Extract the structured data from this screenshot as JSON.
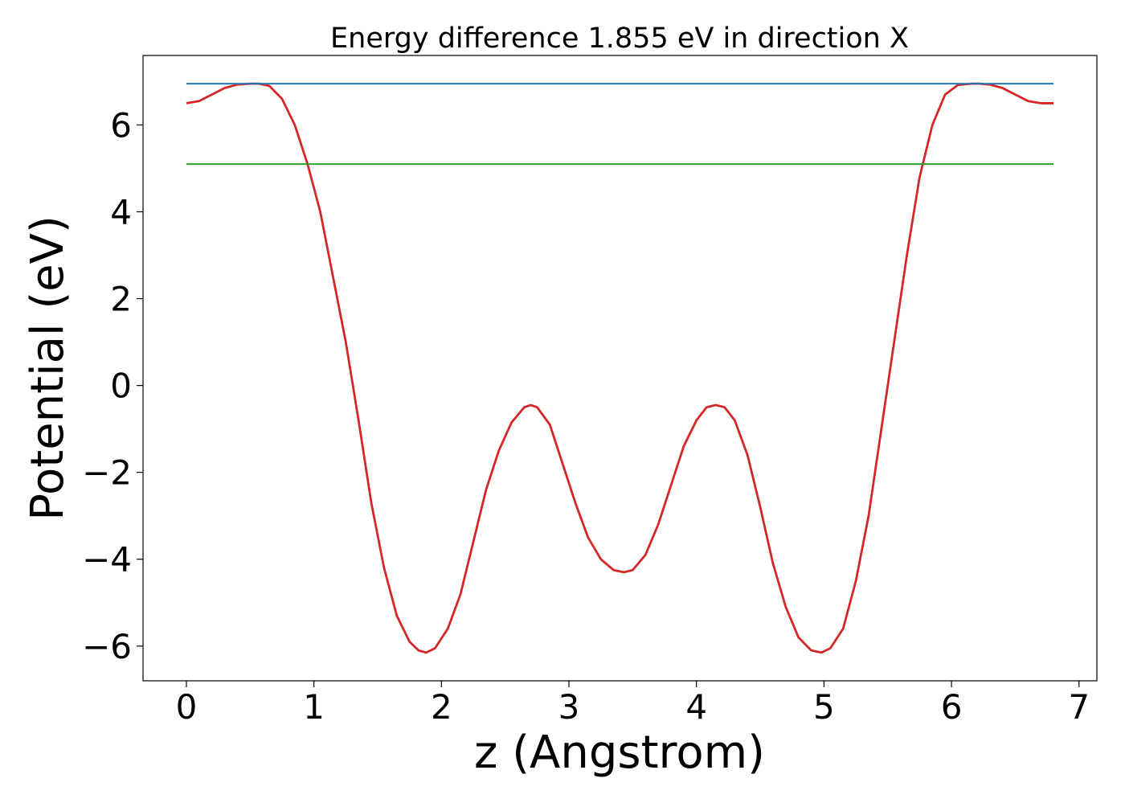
{
  "chart_data": {
    "type": "line",
    "title": "Energy difference 1.855 eV in direction X",
    "xlabel": "z (Angstrom)",
    "ylabel": "Potential (eV)",
    "xlim": [
      -0.34,
      7.14
    ],
    "ylim": [
      -6.8,
      7.6
    ],
    "xticks": [
      0,
      1,
      2,
      3,
      4,
      5,
      6,
      7
    ],
    "xtick_labels": [
      "0",
      "1",
      "2",
      "3",
      "4",
      "5",
      "6",
      "7"
    ],
    "yticks": [
      -6,
      -4,
      -2,
      0,
      2,
      4,
      6
    ],
    "ytick_labels": [
      "−6",
      "−4",
      "−2",
      "0",
      "2",
      "4",
      "6"
    ],
    "grid": false,
    "series": [
      {
        "color": "#d62728",
        "x": [
          0.0,
          0.1,
          0.2,
          0.3,
          0.4,
          0.5,
          0.57,
          0.65,
          0.75,
          0.85,
          0.95,
          1.05,
          1.15,
          1.25,
          1.35,
          1.45,
          1.55,
          1.65,
          1.75,
          1.82,
          1.88,
          1.95,
          2.05,
          2.15,
          2.25,
          2.35,
          2.45,
          2.55,
          2.65,
          2.7,
          2.75,
          2.85,
          2.95,
          3.05,
          3.15,
          3.25,
          3.35,
          3.43,
          3.5,
          3.6,
          3.7,
          3.8,
          3.9,
          4.0,
          4.08,
          4.15,
          4.22,
          4.3,
          4.4,
          4.5,
          4.6,
          4.7,
          4.8,
          4.9,
          4.98,
          5.05,
          5.15,
          5.25,
          5.35,
          5.45,
          5.55,
          5.65,
          5.75,
          5.85,
          5.95,
          6.05,
          6.15,
          6.22,
          6.3,
          6.4,
          6.5,
          6.6,
          6.7,
          6.8
        ],
        "y": [
          6.5,
          6.55,
          6.7,
          6.85,
          6.93,
          6.95,
          6.95,
          6.9,
          6.6,
          6.0,
          5.1,
          4.0,
          2.5,
          1.0,
          -0.8,
          -2.7,
          -4.2,
          -5.3,
          -5.9,
          -6.1,
          -6.15,
          -6.05,
          -5.6,
          -4.8,
          -3.6,
          -2.4,
          -1.5,
          -0.85,
          -0.5,
          -0.45,
          -0.5,
          -0.9,
          -1.8,
          -2.7,
          -3.5,
          -4.0,
          -4.25,
          -4.3,
          -4.25,
          -3.9,
          -3.2,
          -2.3,
          -1.4,
          -0.8,
          -0.5,
          -0.45,
          -0.5,
          -0.8,
          -1.6,
          -2.8,
          -4.1,
          -5.1,
          -5.8,
          -6.1,
          -6.15,
          -6.05,
          -5.6,
          -4.5,
          -3.0,
          -1.0,
          1.0,
          3.0,
          4.8,
          6.0,
          6.7,
          6.92,
          6.95,
          6.95,
          6.93,
          6.85,
          6.7,
          6.55,
          6.5,
          6.5
        ]
      },
      {
        "color": "#1f77b4",
        "x": [
          0.0,
          6.8
        ],
        "y": [
          6.95,
          6.95
        ]
      },
      {
        "color": "#2ca02c",
        "x": [
          0.0,
          6.8
        ],
        "y": [
          5.1,
          5.1
        ]
      }
    ]
  }
}
